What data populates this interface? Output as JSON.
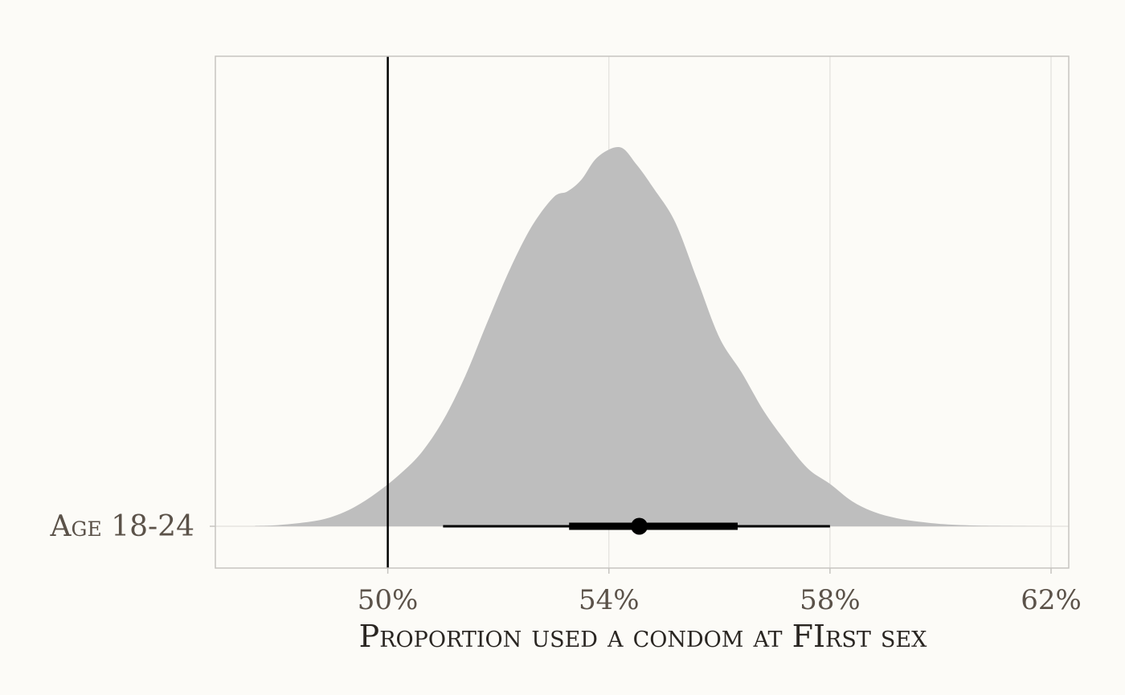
{
  "chart_data": {
    "type": "area",
    "subtype": "halfeye-density",
    "title": "",
    "xlabel": "Proportion used a condom at FIrst sex",
    "ylabel": "",
    "category": "Age 18-24",
    "xlim": [
      0.4688,
      0.6232
    ],
    "x_ticks": [
      0.5,
      0.54,
      0.58,
      0.62
    ],
    "x_tick_labels": [
      "50%",
      "54%",
      "58%",
      "62%"
    ],
    "reference_line": 0.5,
    "grid": true,
    "density": {
      "x": [
        0.476,
        0.48,
        0.486,
        0.49,
        0.494,
        0.498,
        0.502,
        0.506,
        0.51,
        0.514,
        0.518,
        0.522,
        0.526,
        0.53,
        0.5325,
        0.535,
        0.538,
        0.542,
        0.545,
        0.548,
        0.552,
        0.556,
        0.56,
        0.564,
        0.568,
        0.572,
        0.576,
        0.58,
        0.584,
        0.588,
        0.592,
        0.596,
        0.6,
        0.606,
        0.612,
        0.62
      ],
      "y": [
        0.001,
        0.003,
        0.012,
        0.025,
        0.05,
        0.087,
        0.133,
        0.19,
        0.275,
        0.39,
        0.53,
        0.665,
        0.778,
        0.855,
        0.87,
        0.9,
        0.96,
        0.985,
        0.94,
        0.88,
        0.79,
        0.64,
        0.49,
        0.4,
        0.3,
        0.22,
        0.15,
        0.11,
        0.065,
        0.037,
        0.021,
        0.012,
        0.006,
        0.002,
        0.001,
        0.0
      ]
    },
    "point_estimate": 0.5455,
    "interval_66": [
      0.5328,
      0.5633
    ],
    "interval_95": [
      0.51,
      0.58
    ],
    "colors": {
      "density_fill": "#bebebe",
      "interval": "#000000",
      "reference_line": "#000000",
      "grid": "#e2e0dc",
      "panel_border": "#c6c4c0",
      "background": "#fcfbf7"
    }
  }
}
